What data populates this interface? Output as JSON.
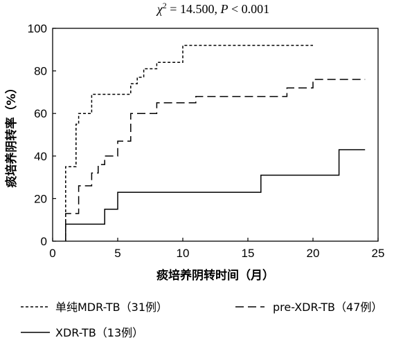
{
  "chart_data": {
    "type": "line",
    "step": true,
    "title": {
      "chi": "χ",
      "sup": "2",
      "rest": " = 14.500, ",
      "p": "P",
      "p_rest": " < 0.001"
    },
    "xlabel": "痰培养阴转时间（月）",
    "ylabel": "痰培养阴转率（%）",
    "xlim": [
      0,
      25
    ],
    "ylim": [
      0,
      100
    ],
    "xticks": [
      0,
      5,
      10,
      15,
      20,
      25
    ],
    "yticks": [
      0,
      20,
      40,
      60,
      80,
      100
    ],
    "legend_placement": "bottom",
    "series": [
      {
        "name": "单纯MDR-TB（31例）",
        "dash": "dotted",
        "x": [
          1,
          1,
          1.8,
          1.8,
          2,
          2,
          3,
          3,
          6,
          6,
          6.5,
          6.5,
          7,
          7,
          8,
          8,
          10,
          10,
          20
        ],
        "y": [
          0,
          35,
          35,
          55,
          55,
          60,
          60,
          69,
          69,
          74,
          74,
          77,
          77,
          81,
          81,
          84,
          84,
          92,
          92
        ]
      },
      {
        "name": "pre-XDR-TB（47例）",
        "dash": "dashed",
        "x": [
          1,
          1,
          1.5,
          1.5,
          2,
          2,
          2.5,
          2.5,
          3,
          3,
          3.5,
          3.5,
          4,
          4,
          5,
          5,
          6,
          6,
          8,
          8,
          11,
          11,
          18,
          18,
          20,
          20,
          24
        ],
        "y": [
          0,
          13,
          13,
          13,
          13,
          26,
          26,
          26,
          26,
          32,
          32,
          36,
          36,
          40,
          40,
          47,
          47,
          60,
          60,
          65,
          65,
          68,
          68,
          72,
          72,
          76,
          76
        ]
      },
      {
        "name": "XDR-TB（13例）",
        "dash": "solid",
        "x": [
          1,
          1,
          4,
          4,
          5,
          5,
          16,
          16,
          22,
          22,
          24
        ],
        "y": [
          0,
          8,
          8,
          15,
          15,
          23,
          23,
          31,
          31,
          43,
          43
        ]
      }
    ]
  }
}
